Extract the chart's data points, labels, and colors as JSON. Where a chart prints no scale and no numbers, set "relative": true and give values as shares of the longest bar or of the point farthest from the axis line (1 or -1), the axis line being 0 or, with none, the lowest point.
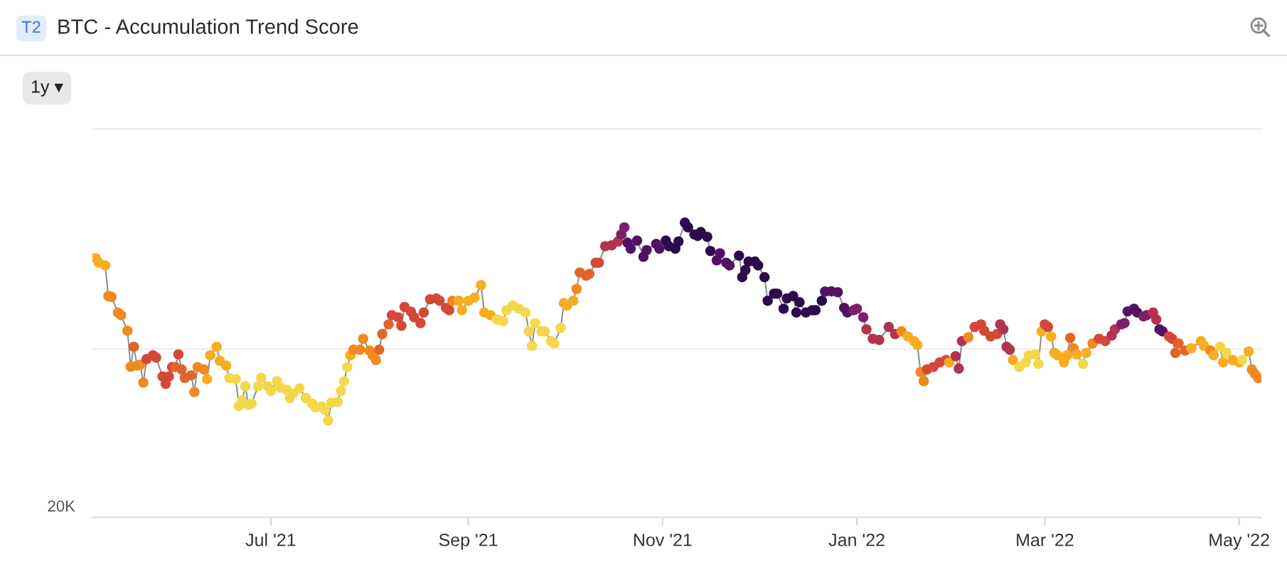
{
  "chart_data": {
    "type": "line",
    "title": "BTC - Accumulation Trend Score",
    "annotations": [
      "T2",
      "1y ▾",
      "20K"
    ],
    "relative": true,
    "marker": "circle",
    "xlim": [
      "2021-05-06",
      "2022-05-08"
    ],
    "xticks": [
      {
        "value": "2021-07-01",
        "label": "Jul '21"
      },
      {
        "value": "2021-09-01",
        "label": "Sep '21"
      },
      {
        "value": "2021-11-01",
        "label": "Nov '21"
      },
      {
        "value": "2022-01-01",
        "label": "Jan '22"
      },
      {
        "value": "2022-03-01",
        "label": "Mar '22"
      },
      {
        "value": "2022-05-01",
        "label": "May '22"
      }
    ],
    "ref_lines": [
      {
        "axis": "y",
        "value": 0.571,
        "color": "#efefef"
      },
      {
        "axis": "y",
        "value": 1.318,
        "color": "#efefef"
      }
    ],
    "x": [
      "2021-05-07",
      "2021-05-08",
      "2021-05-10",
      "2021-05-11",
      "2021-05-12",
      "2021-05-14",
      "2021-05-15",
      "2021-05-17",
      "2021-05-18",
      "2021-05-19",
      "2021-05-20",
      "2021-05-21",
      "2021-05-22",
      "2021-05-23",
      "2021-05-25",
      "2021-05-26",
      "2021-05-28",
      "2021-05-29",
      "2021-05-30",
      "2021-05-31",
      "2021-06-01",
      "2021-06-02",
      "2021-06-03",
      "2021-06-04",
      "2021-06-06",
      "2021-06-07",
      "2021-06-08",
      "2021-06-10",
      "2021-06-11",
      "2021-06-12",
      "2021-06-14",
      "2021-06-15",
      "2021-06-17",
      "2021-06-18",
      "2021-06-20",
      "2021-06-21",
      "2021-06-22",
      "2021-06-23",
      "2021-06-24",
      "2021-06-25",
      "2021-06-27",
      "2021-06-28",
      "2021-06-30",
      "2021-07-01",
      "2021-07-03",
      "2021-07-04",
      "2021-07-06",
      "2021-07-07",
      "2021-07-08",
      "2021-07-10",
      "2021-07-12",
      "2021-07-14",
      "2021-07-15",
      "2021-07-17",
      "2021-07-18",
      "2021-07-19",
      "2021-07-20",
      "2021-07-22",
      "2021-07-23",
      "2021-07-24",
      "2021-07-25",
      "2021-07-26",
      "2021-07-27",
      "2021-07-29",
      "2021-07-30",
      "2021-08-01",
      "2021-08-02",
      "2021-08-03",
      "2021-08-04",
      "2021-08-05",
      "2021-08-07",
      "2021-08-08",
      "2021-08-10",
      "2021-08-11",
      "2021-08-12",
      "2021-08-14",
      "2021-08-15",
      "2021-08-17",
      "2021-08-18",
      "2021-08-20",
      "2021-08-22",
      "2021-08-23",
      "2021-08-25",
      "2021-08-26",
      "2021-08-27",
      "2021-08-29",
      "2021-08-30",
      "2021-09-01",
      "2021-09-03",
      "2021-09-05",
      "2021-09-06",
      "2021-09-08",
      "2021-09-10",
      "2021-09-12",
      "2021-09-13",
      "2021-09-15",
      "2021-09-17",
      "2021-09-19",
      "2021-09-20",
      "2021-09-21",
      "2021-09-22",
      "2021-09-24",
      "2021-09-25",
      "2021-09-27",
      "2021-09-28",
      "2021-09-30",
      "2021-10-01",
      "2021-10-02",
      "2021-10-04",
      "2021-10-05",
      "2021-10-06",
      "2021-10-08",
      "2021-10-09",
      "2021-10-11",
      "2021-10-12",
      "2021-10-14",
      "2021-10-16",
      "2021-10-18",
      "2021-10-19",
      "2021-10-20",
      "2021-10-21",
      "2021-10-22",
      "2021-10-24",
      "2021-10-26",
      "2021-10-27",
      "2021-10-30",
      "2021-10-31",
      "2021-11-02",
      "2021-11-03",
      "2021-11-05",
      "2021-11-06",
      "2021-11-08",
      "2021-11-09",
      "2021-11-11",
      "2021-11-12",
      "2021-11-13",
      "2021-11-15",
      "2021-11-16",
      "2021-11-18",
      "2021-11-19",
      "2021-11-21",
      "2021-11-22",
      "2021-11-25",
      "2021-11-26",
      "2021-11-27",
      "2021-11-28",
      "2021-11-30",
      "2021-12-01",
      "2021-12-03",
      "2021-12-04",
      "2021-12-06",
      "2021-12-07",
      "2021-12-09",
      "2021-12-10",
      "2021-12-12",
      "2021-12-13",
      "2021-12-14",
      "2021-12-16",
      "2021-12-18",
      "2021-12-19",
      "2021-12-21",
      "2021-12-22",
      "2021-12-24",
      "2021-12-26",
      "2021-12-28",
      "2021-12-29",
      "2021-12-31",
      "2022-01-01",
      "2022-01-03",
      "2022-01-04",
      "2022-01-06",
      "2022-01-08",
      "2022-01-11",
      "2022-01-13",
      "2022-01-15",
      "2022-01-17",
      "2022-01-19",
      "2022-01-20",
      "2022-01-21",
      "2022-01-22",
      "2022-01-23",
      "2022-01-25",
      "2022-01-27",
      "2022-01-29",
      "2022-01-30",
      "2022-02-01",
      "2022-02-02",
      "2022-02-03",
      "2022-02-05",
      "2022-02-07",
      "2022-02-09",
      "2022-02-10",
      "2022-02-12",
      "2022-02-14",
      "2022-02-15",
      "2022-02-16",
      "2022-02-17",
      "2022-02-18",
      "2022-02-19",
      "2022-02-21",
      "2022-02-23",
      "2022-02-24",
      "2022-02-26",
      "2022-02-27",
      "2022-02-28",
      "2022-03-01",
      "2022-03-02",
      "2022-03-03",
      "2022-03-04",
      "2022-03-05",
      "2022-03-07",
      "2022-03-08",
      "2022-03-09",
      "2022-03-10",
      "2022-03-11",
      "2022-03-13",
      "2022-03-14",
      "2022-03-16",
      "2022-03-18",
      "2022-03-20",
      "2022-03-22",
      "2022-03-23",
      "2022-03-25",
      "2022-03-26",
      "2022-03-27",
      "2022-03-29",
      "2022-03-30",
      "2022-04-01",
      "2022-04-02",
      "2022-04-04",
      "2022-04-05",
      "2022-04-06",
      "2022-04-07",
      "2022-04-09",
      "2022-04-10",
      "2022-04-11",
      "2022-04-12",
      "2022-04-14",
      "2022-04-16",
      "2022-04-19",
      "2022-04-20",
      "2022-04-22",
      "2022-04-23",
      "2022-04-25",
      "2022-04-26",
      "2022-04-27",
      "2022-04-29",
      "2022-05-01",
      "2022-05-02",
      "2022-05-04",
      "2022-05-05",
      "2022-05-06",
      "2022-05-07"
    ],
    "series": [
      {
        "color": "#858a93",
        "values": [
          0.879,
          0.864,
          0.855,
          0.751,
          0.748,
          0.695,
          0.686,
          0.633,
          0.511,
          0.579,
          0.515,
          0.518,
          0.457,
          0.537,
          0.55,
          0.542,
          0.478,
          0.453,
          0.478,
          0.51,
          0.51,
          0.553,
          0.502,
          0.473,
          0.482,
          0.425,
          0.51,
          0.502,
          0.469,
          0.55,
          0.579,
          0.531,
          0.515,
          0.473,
          0.469,
          0.378,
          0.397,
          0.445,
          0.381,
          0.386,
          0.445,
          0.473,
          0.445,
          0.429,
          0.462,
          0.44,
          0.433,
          0.405,
          0.421,
          0.438,
          0.405,
          0.386,
          0.373,
          0.376,
          0.365,
          0.329,
          0.389,
          0.392,
          0.429,
          0.462,
          0.51,
          0.55,
          0.569,
          0.569,
          0.606,
          0.566,
          0.55,
          0.534,
          0.569,
          0.622,
          0.655,
          0.686,
          0.679,
          0.65,
          0.714,
          0.698,
          0.679,
          0.659,
          0.695,
          0.74,
          0.743,
          0.735,
          0.711,
          0.703,
          0.735,
          0.735,
          0.703,
          0.735,
          0.746,
          0.788,
          0.695,
          0.686,
          0.671,
          0.666,
          0.703,
          0.719,
          0.708,
          0.695,
          0.631,
          0.582,
          0.659,
          0.631,
          0.631,
          0.598,
          0.59,
          0.643,
          0.727,
          0.719,
          0.735,
          0.775,
          0.831,
          0.82,
          0.826,
          0.864,
          0.864,
          0.92,
          0.923,
          0.936,
          0.96,
          0.984,
          0.932,
          0.912,
          0.939,
          0.884,
          0.907,
          0.928,
          0.912,
          0.939,
          0.92,
          0.912,
          0.936,
          1.0,
          0.984,
          0.96,
          0.955,
          0.968,
          0.952,
          0.904,
          0.872,
          0.896,
          0.864,
          0.855,
          0.888,
          0.815,
          0.839,
          0.868,
          0.868,
          0.855,
          0.815,
          0.735,
          0.759,
          0.759,
          0.708,
          0.743,
          0.751,
          0.695,
          0.73,
          0.695,
          0.703,
          0.703,
          0.735,
          0.766,
          0.767,
          0.764,
          0.711,
          0.695,
          0.703,
          0.708,
          0.679,
          0.638,
          0.606,
          0.602,
          0.646,
          0.622,
          0.631,
          0.614,
          0.598,
          0.585,
          0.493,
          0.462,
          0.502,
          0.51,
          0.526,
          0.534,
          0.526,
          0.547,
          0.505,
          0.598,
          0.611,
          0.646,
          0.655,
          0.633,
          0.614,
          0.622,
          0.655,
          0.638,
          0.579,
          0.569,
          0.534,
          0.51,
          0.526,
          0.55,
          0.553,
          0.521,
          0.631,
          0.655,
          0.646,
          0.614,
          0.558,
          0.55,
          0.526,
          0.55,
          0.609,
          0.574,
          0.553,
          0.521,
          0.558,
          0.59,
          0.606,
          0.598,
          0.617,
          0.638,
          0.655,
          0.659,
          0.699,
          0.708,
          0.695,
          0.682,
          0.686,
          0.695,
          0.671,
          0.638,
          0.631,
          0.614,
          0.606,
          0.558,
          0.59,
          0.566,
          0.574,
          0.598,
          0.582,
          0.566,
          0.55,
          0.579,
          0.526,
          0.558,
          0.534,
          0.526,
          0.534,
          0.563,
          0.502,
          0.486,
          0.473
        ],
        "colors": [
          "#f6ad22",
          "#f6ad22",
          "#f6ad22",
          "#ee8a1e",
          "#ee8a1e",
          "#ee8a1e",
          "#ee8a1e",
          "#ee8a1e",
          "#ee8a1e",
          "#e3642b",
          "#ee8a1e",
          "#ee8a1e",
          "#ee8a1e",
          "#d4483b",
          "#d4483b",
          "#d4483b",
          "#d4483b",
          "#d4483b",
          "#d4483b",
          "#d4483b",
          "#e3642b",
          "#d4483b",
          "#e3642b",
          "#e3642b",
          "#e3642b",
          "#ee8a1e",
          "#ee8a1e",
          "#ee8a1e",
          "#f6ad22",
          "#f6ad22",
          "#f6ad22",
          "#f6ad22",
          "#f6ad22",
          "#f3d84b",
          "#f3d84b",
          "#f3d84b",
          "#f3d84b",
          "#f3d84b",
          "#f3d84b",
          "#f3d84b",
          "#f3d84b",
          "#f3d84b",
          "#f3d84b",
          "#f3d84b",
          "#f3d84b",
          "#f3d84b",
          "#f3d84b",
          "#f3d84b",
          "#f3d84b",
          "#f3d84b",
          "#f3d84b",
          "#f3d84b",
          "#f3d84b",
          "#f3d84b",
          "#f3d84b",
          "#f3d84b",
          "#f3d84b",
          "#f3d84b",
          "#f3d84b",
          "#f3d84b",
          "#f3d84b",
          "#f6ad22",
          "#ee8a1e",
          "#ee8a1e",
          "#ee8a1e",
          "#ee8a1e",
          "#ee8a1e",
          "#ee8a1e",
          "#e3642b",
          "#e3642b",
          "#e3642b",
          "#d4483b",
          "#d4483b",
          "#d4483b",
          "#d4483b",
          "#d4483b",
          "#d4483b",
          "#d4483b",
          "#d4483b",
          "#d4483b",
          "#d4483b",
          "#d4483b",
          "#d4483b",
          "#d4483b",
          "#ee8a1e",
          "#f6ad22",
          "#f6ad22",
          "#f6ad22",
          "#f6ad22",
          "#f6ad22",
          "#f6ad22",
          "#f6ad22",
          "#f3d84b",
          "#f3d84b",
          "#f3d84b",
          "#f3d84b",
          "#f3d84b",
          "#f3d84b",
          "#f3d84b",
          "#f3d84b",
          "#f3d84b",
          "#f3d84b",
          "#f3d84b",
          "#f3d84b",
          "#f3d84b",
          "#f3d84b",
          "#f6ad22",
          "#f6ad22",
          "#f6ad22",
          "#ee8a1e",
          "#e3642b",
          "#e3642b",
          "#e3642b",
          "#d4483b",
          "#d4483b",
          "#b2344f",
          "#b2344f",
          "#b2344f",
          "#7d1f6b",
          "#7d1f6b",
          "#521264",
          "#521264",
          "#521264",
          "#521264",
          "#521264",
          "#521264",
          "#521264",
          "#2a0c4a",
          "#2a0c4a",
          "#2a0c4a",
          "#2a0c4a",
          "#2a0c4a",
          "#2a0c4a",
          "#2a0c4a",
          "#2a0c4a",
          "#2a0c4a",
          "#2a0c4a",
          "#2a0c4a",
          "#521264",
          "#521264",
          "#521264",
          "#521264",
          "#2a0c4a",
          "#2a0c4a",
          "#2a0c4a",
          "#2a0c4a",
          "#2a0c4a",
          "#2a0c4a",
          "#2a0c4a",
          "#2a0c4a",
          "#2a0c4a",
          "#2a0c4a",
          "#2a0c4a",
          "#2a0c4a",
          "#2a0c4a",
          "#2a0c4a",
          "#2a0c4a",
          "#2a0c4a",
          "#2a0c4a",
          "#2a0c4a",
          "#2a0c4a",
          "#521264",
          "#521264",
          "#521264",
          "#521264",
          "#521264",
          "#7d1f6b",
          "#7d1f6b",
          "#7d1f6b",
          "#b2344f",
          "#b2344f",
          "#b2344f",
          "#b2344f",
          "#b2344f",
          "#ee8a1e",
          "#f6ad22",
          "#f6ad22",
          "#f6ad22",
          "#ee8a1e",
          "#ee8a1e",
          "#d4483b",
          "#d4483b",
          "#d4483b",
          "#d4483b",
          "#f6ad22",
          "#b2344f",
          "#b2344f",
          "#b2344f",
          "#ee8a1e",
          "#d4483b",
          "#d4483b",
          "#d4483b",
          "#d4483b",
          "#d4483b",
          "#b2344f",
          "#b2344f",
          "#b2344f",
          "#b2344f",
          "#f6ad22",
          "#f3d84b",
          "#f3d84b",
          "#f3d84b",
          "#f3d84b",
          "#f3d84b",
          "#f6ad22",
          "#d4483b",
          "#d4483b",
          "#f6ad22",
          "#f6ad22",
          "#f6ad22",
          "#f6ad22",
          "#f6ad22",
          "#e3642b",
          "#ee8a1e",
          "#f6ad22",
          "#f3d84b",
          "#f6ad22",
          "#ee8a1e",
          "#d4483b",
          "#d4483b",
          "#b2344f",
          "#b2344f",
          "#7d1f6b",
          "#7d1f6b",
          "#521264",
          "#521264",
          "#521264",
          "#7d1f6b",
          "#7d1f6b",
          "#b2344f",
          "#b2344f",
          "#521264",
          "#521264",
          "#d4483b",
          "#d4483b",
          "#e3642b",
          "#e3642b",
          "#e3642b",
          "#f6ad22",
          "#f6ad22",
          "#f6ad22",
          "#ee8a1e",
          "#f6ad22",
          "#f3d84b",
          "#f6ad22",
          "#f3d84b",
          "#f6ad22",
          "#f6ad22",
          "#f3d84b",
          "#f6ad22",
          "#ee8a1e",
          "#ee8a1e",
          "#ee8a1e"
        ]
      }
    ]
  }
}
